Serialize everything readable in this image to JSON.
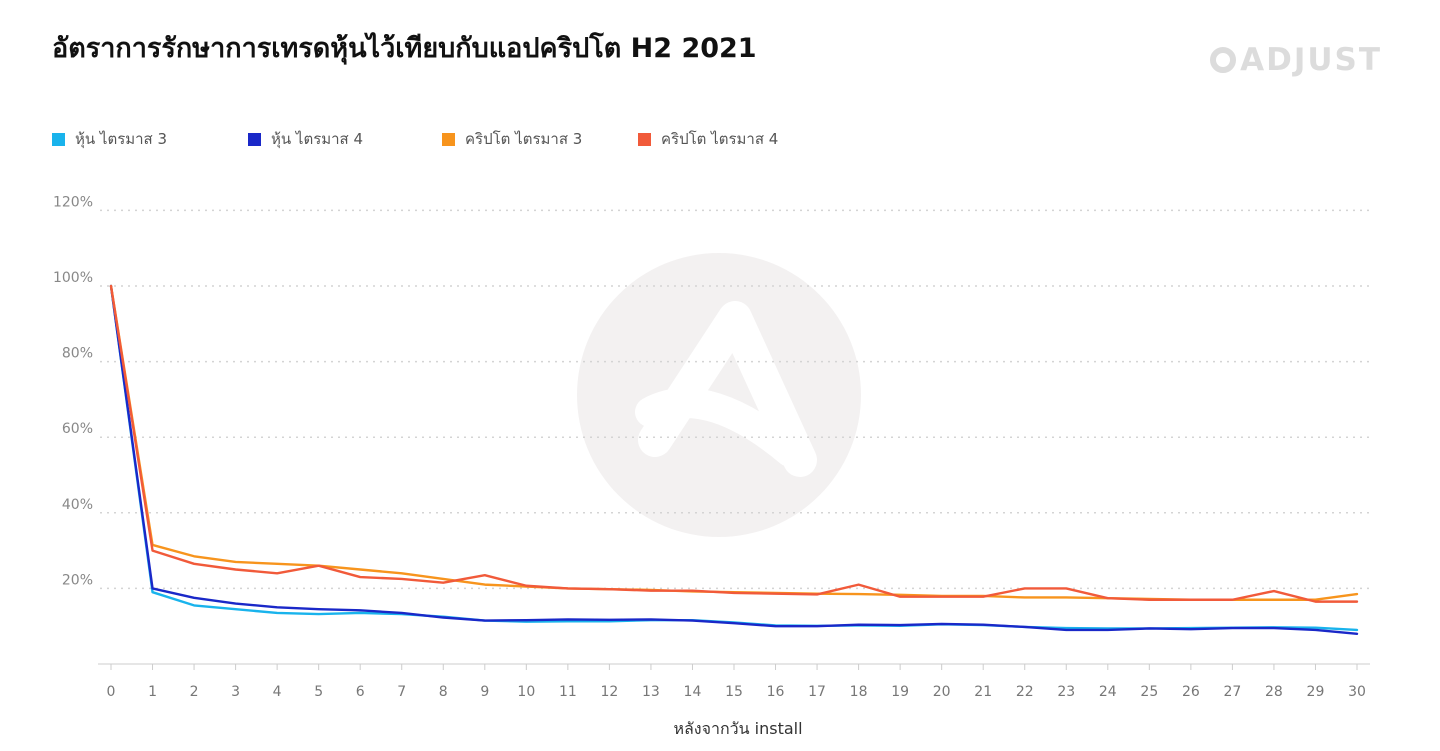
{
  "header": {
    "title": "อัตราการรักษาการเทรดหุ้นไว้เทียบกับแอปคริปโต H2 2021",
    "brand": "ADJUST"
  },
  "chart_data": {
    "type": "line",
    "title": "อัตราการรักษาการเทรดหุ้นไว้เทียบกับแอปคริปโต H2 2021",
    "xlabel": "หลังจากวัน install",
    "ylabel": "",
    "x": [
      0,
      1,
      2,
      3,
      4,
      5,
      6,
      7,
      8,
      9,
      10,
      11,
      12,
      13,
      14,
      15,
      16,
      17,
      18,
      19,
      20,
      21,
      22,
      23,
      24,
      25,
      26,
      27,
      28,
      29,
      30
    ],
    "ylim": [
      0,
      120
    ],
    "yticks": [
      20,
      40,
      60,
      80,
      100,
      120
    ],
    "ytick_labels": [
      "20%",
      "40%",
      "60%",
      "80%",
      "100%",
      "120%"
    ],
    "grid": true,
    "legend_position": "top-left",
    "series": [
      {
        "name": "หุ้น ไตรมาส 3",
        "color": "#19b3ec",
        "values": [
          100,
          19,
          15.5,
          14.5,
          13.5,
          13.2,
          13.5,
          13.2,
          12.5,
          11.5,
          11.2,
          11.3,
          11.3,
          11.6,
          11.6,
          11,
          10.2,
          10.1,
          10.2,
          10.1,
          10.5,
          10.3,
          9.8,
          9.5,
          9.4,
          9.4,
          9.5,
          9.6,
          9.7,
          9.6,
          9
        ]
      },
      {
        "name": "หุ้น ไตรมาส 4",
        "color": "#1a28c8",
        "values": [
          100,
          20,
          17.5,
          16,
          15,
          14.5,
          14.2,
          13.5,
          12.3,
          11.5,
          11.6,
          11.8,
          11.7,
          11.8,
          11.5,
          10.8,
          10,
          10,
          10.4,
          10.3,
          10.6,
          10.4,
          9.8,
          9,
          9,
          9.4,
          9.2,
          9.5,
          9.5,
          9,
          8
        ]
      },
      {
        "name": "คริปโต ไตรมาส 3",
        "color": "#f7941d",
        "values": [
          100,
          31.5,
          28.5,
          27,
          26.5,
          26,
          25,
          24,
          22.5,
          21,
          20.5,
          20,
          19.8,
          19.6,
          19.2,
          19,
          18.8,
          18.6,
          18.5,
          18.3,
          18,
          18,
          17.6,
          17.6,
          17.4,
          17.2,
          17,
          17,
          17,
          17,
          18.5
        ]
      },
      {
        "name": "คริปโต ไตรมาส 4",
        "color": "#f15a3a",
        "values": [
          100,
          30,
          26.5,
          25,
          24,
          26,
          23,
          22.5,
          21.5,
          23.5,
          20.7,
          20,
          19.8,
          19.4,
          19.4,
          18.8,
          18.6,
          18.4,
          21,
          17.8,
          17.8,
          17.8,
          20,
          20,
          17.4,
          17,
          17,
          17,
          19.3,
          16.5,
          16.5
        ]
      }
    ]
  }
}
